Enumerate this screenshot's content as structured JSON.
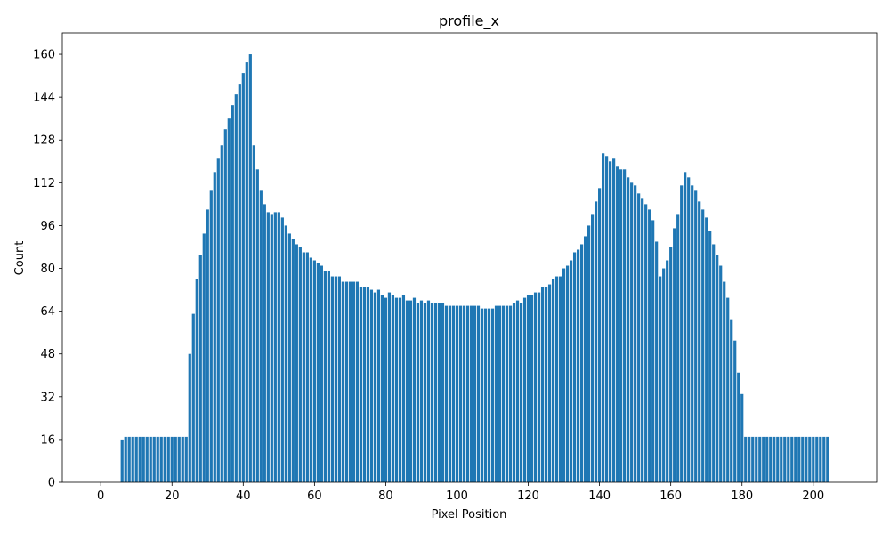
{
  "chart_data": {
    "type": "bar",
    "title": "profile_x",
    "xlabel": "Pixel Position",
    "ylabel": "Count",
    "color": "#1f77b4",
    "bar_width": 0.8,
    "x": [
      0,
      1,
      2,
      3,
      4,
      5,
      6,
      7,
      8,
      9,
      10,
      11,
      12,
      13,
      14,
      15,
      16,
      17,
      18,
      19,
      20,
      21,
      22,
      23,
      24,
      25,
      26,
      27,
      28,
      29,
      30,
      31,
      32,
      33,
      34,
      35,
      36,
      37,
      38,
      39,
      40,
      41,
      42,
      43,
      44,
      45,
      46,
      47,
      48,
      49,
      50,
      51,
      52,
      53,
      54,
      55,
      56,
      57,
      58,
      59,
      60,
      61,
      62,
      63,
      64,
      65,
      66,
      67,
      68,
      69,
      70,
      71,
      72,
      73,
      74,
      75,
      76,
      77,
      78,
      79,
      80,
      81,
      82,
      83,
      84,
      85,
      86,
      87,
      88,
      89,
      90,
      91,
      92,
      93,
      94,
      95,
      96,
      97,
      98,
      99,
      100,
      101,
      102,
      103,
      104,
      105,
      106,
      107,
      108,
      109,
      110,
      111,
      112,
      113,
      114,
      115,
      116,
      117,
      118,
      119,
      120,
      121,
      122,
      123,
      124,
      125,
      126,
      127,
      128,
      129,
      130,
      131,
      132,
      133,
      134,
      135,
      136,
      137,
      138,
      139,
      140,
      141,
      142,
      143,
      144,
      145,
      146,
      147,
      148,
      149,
      150,
      151,
      152,
      153,
      154,
      155,
      156,
      157,
      158,
      159,
      160,
      161,
      162,
      163,
      164,
      165,
      166,
      167,
      168,
      169,
      170,
      171,
      172,
      173,
      174,
      175,
      176,
      177,
      178,
      179,
      180,
      181,
      182,
      183,
      184,
      185,
      186,
      187,
      188,
      189,
      190,
      191,
      192,
      193,
      194,
      195,
      196,
      197,
      198,
      199,
      200,
      201,
      202,
      203,
      204,
      205,
      206,
      207
    ],
    "values": [
      0,
      0,
      0,
      0,
      0,
      0,
      16,
      17,
      17,
      17,
      17,
      17,
      17,
      17,
      17,
      17,
      17,
      17,
      17,
      17,
      17,
      17,
      17,
      17,
      17,
      48,
      63,
      76,
      85,
      93,
      102,
      109,
      116,
      121,
      126,
      132,
      136,
      141,
      145,
      149,
      153,
      157,
      160,
      126,
      117,
      109,
      104,
      101,
      100,
      101,
      101,
      99,
      96,
      93,
      91,
      89,
      88,
      86,
      86,
      84,
      83,
      82,
      81,
      79,
      79,
      77,
      77,
      77,
      75,
      75,
      75,
      75,
      75,
      73,
      73,
      73,
      72,
      71,
      72,
      70,
      69,
      71,
      70,
      69,
      69,
      70,
      68,
      68,
      69,
      67,
      68,
      67,
      68,
      67,
      67,
      67,
      67,
      66,
      66,
      66,
      66,
      66,
      66,
      66,
      66,
      66,
      66,
      65,
      65,
      65,
      65,
      66,
      66,
      66,
      66,
      66,
      67,
      68,
      67,
      69,
      70,
      70,
      71,
      71,
      73,
      73,
      74,
      76,
      77,
      77,
      80,
      81,
      83,
      86,
      87,
      89,
      92,
      96,
      100,
      105,
      110,
      123,
      122,
      120,
      121,
      118,
      117,
      117,
      114,
      112,
      111,
      108,
      106,
      104,
      102,
      98,
      90,
      77,
      80,
      83,
      88,
      95,
      100,
      111,
      116,
      114,
      111,
      109,
      105,
      102,
      99,
      94,
      89,
      85,
      81,
      75,
      69,
      61,
      53,
      41,
      33,
      17,
      17,
      17,
      17,
      17,
      17,
      17,
      17,
      17,
      17,
      17,
      17,
      17,
      17,
      17,
      17,
      17,
      17,
      17,
      17,
      17,
      17,
      17,
      17,
      0,
      0,
      0
    ],
    "xlim": [
      -10.79,
      217.79
    ],
    "ylim": [
      0,
      168
    ],
    "xticks": [
      0,
      20,
      40,
      60,
      80,
      100,
      120,
      140,
      160,
      180,
      200
    ],
    "yticks": [
      0,
      16,
      32,
      48,
      64,
      80,
      96,
      112,
      128,
      144,
      160
    ]
  }
}
